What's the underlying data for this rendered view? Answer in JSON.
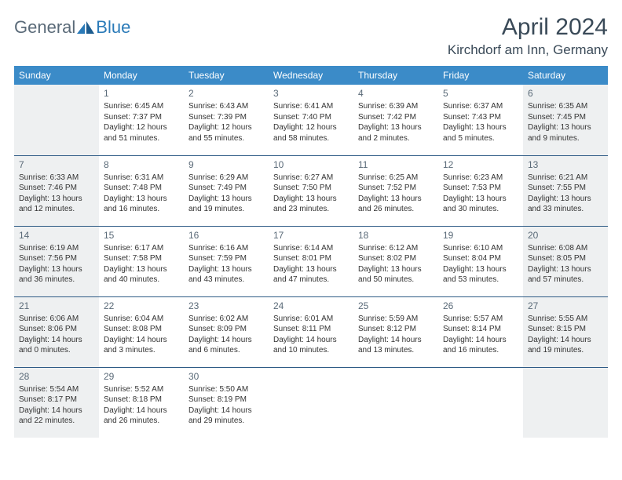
{
  "brand": {
    "part1": "General",
    "part2": "Blue"
  },
  "title": "April 2024",
  "location": "Kirchdorf am Inn, Germany",
  "colors": {
    "header_bg": "#3b8bc8",
    "header_text": "#ffffff",
    "weekend_bg": "#eef0f1",
    "rule": "#2d5a85",
    "brand_gray": "#5a6a78",
    "brand_blue": "#2a7ab8"
  },
  "weekdays": [
    "Sunday",
    "Monday",
    "Tuesday",
    "Wednesday",
    "Thursday",
    "Friday",
    "Saturday"
  ],
  "weeks": [
    [
      {
        "day": "",
        "sunrise": "",
        "sunset": "",
        "daylight": ""
      },
      {
        "day": "1",
        "sunrise": "Sunrise: 6:45 AM",
        "sunset": "Sunset: 7:37 PM",
        "daylight": "Daylight: 12 hours and 51 minutes."
      },
      {
        "day": "2",
        "sunrise": "Sunrise: 6:43 AM",
        "sunset": "Sunset: 7:39 PM",
        "daylight": "Daylight: 12 hours and 55 minutes."
      },
      {
        "day": "3",
        "sunrise": "Sunrise: 6:41 AM",
        "sunset": "Sunset: 7:40 PM",
        "daylight": "Daylight: 12 hours and 58 minutes."
      },
      {
        "day": "4",
        "sunrise": "Sunrise: 6:39 AM",
        "sunset": "Sunset: 7:42 PM",
        "daylight": "Daylight: 13 hours and 2 minutes."
      },
      {
        "day": "5",
        "sunrise": "Sunrise: 6:37 AM",
        "sunset": "Sunset: 7:43 PM",
        "daylight": "Daylight: 13 hours and 5 minutes."
      },
      {
        "day": "6",
        "sunrise": "Sunrise: 6:35 AM",
        "sunset": "Sunset: 7:45 PM",
        "daylight": "Daylight: 13 hours and 9 minutes."
      }
    ],
    [
      {
        "day": "7",
        "sunrise": "Sunrise: 6:33 AM",
        "sunset": "Sunset: 7:46 PM",
        "daylight": "Daylight: 13 hours and 12 minutes."
      },
      {
        "day": "8",
        "sunrise": "Sunrise: 6:31 AM",
        "sunset": "Sunset: 7:48 PM",
        "daylight": "Daylight: 13 hours and 16 minutes."
      },
      {
        "day": "9",
        "sunrise": "Sunrise: 6:29 AM",
        "sunset": "Sunset: 7:49 PM",
        "daylight": "Daylight: 13 hours and 19 minutes."
      },
      {
        "day": "10",
        "sunrise": "Sunrise: 6:27 AM",
        "sunset": "Sunset: 7:50 PM",
        "daylight": "Daylight: 13 hours and 23 minutes."
      },
      {
        "day": "11",
        "sunrise": "Sunrise: 6:25 AM",
        "sunset": "Sunset: 7:52 PM",
        "daylight": "Daylight: 13 hours and 26 minutes."
      },
      {
        "day": "12",
        "sunrise": "Sunrise: 6:23 AM",
        "sunset": "Sunset: 7:53 PM",
        "daylight": "Daylight: 13 hours and 30 minutes."
      },
      {
        "day": "13",
        "sunrise": "Sunrise: 6:21 AM",
        "sunset": "Sunset: 7:55 PM",
        "daylight": "Daylight: 13 hours and 33 minutes."
      }
    ],
    [
      {
        "day": "14",
        "sunrise": "Sunrise: 6:19 AM",
        "sunset": "Sunset: 7:56 PM",
        "daylight": "Daylight: 13 hours and 36 minutes."
      },
      {
        "day": "15",
        "sunrise": "Sunrise: 6:17 AM",
        "sunset": "Sunset: 7:58 PM",
        "daylight": "Daylight: 13 hours and 40 minutes."
      },
      {
        "day": "16",
        "sunrise": "Sunrise: 6:16 AM",
        "sunset": "Sunset: 7:59 PM",
        "daylight": "Daylight: 13 hours and 43 minutes."
      },
      {
        "day": "17",
        "sunrise": "Sunrise: 6:14 AM",
        "sunset": "Sunset: 8:01 PM",
        "daylight": "Daylight: 13 hours and 47 minutes."
      },
      {
        "day": "18",
        "sunrise": "Sunrise: 6:12 AM",
        "sunset": "Sunset: 8:02 PM",
        "daylight": "Daylight: 13 hours and 50 minutes."
      },
      {
        "day": "19",
        "sunrise": "Sunrise: 6:10 AM",
        "sunset": "Sunset: 8:04 PM",
        "daylight": "Daylight: 13 hours and 53 minutes."
      },
      {
        "day": "20",
        "sunrise": "Sunrise: 6:08 AM",
        "sunset": "Sunset: 8:05 PM",
        "daylight": "Daylight: 13 hours and 57 minutes."
      }
    ],
    [
      {
        "day": "21",
        "sunrise": "Sunrise: 6:06 AM",
        "sunset": "Sunset: 8:06 PM",
        "daylight": "Daylight: 14 hours and 0 minutes."
      },
      {
        "day": "22",
        "sunrise": "Sunrise: 6:04 AM",
        "sunset": "Sunset: 8:08 PM",
        "daylight": "Daylight: 14 hours and 3 minutes."
      },
      {
        "day": "23",
        "sunrise": "Sunrise: 6:02 AM",
        "sunset": "Sunset: 8:09 PM",
        "daylight": "Daylight: 14 hours and 6 minutes."
      },
      {
        "day": "24",
        "sunrise": "Sunrise: 6:01 AM",
        "sunset": "Sunset: 8:11 PM",
        "daylight": "Daylight: 14 hours and 10 minutes."
      },
      {
        "day": "25",
        "sunrise": "Sunrise: 5:59 AM",
        "sunset": "Sunset: 8:12 PM",
        "daylight": "Daylight: 14 hours and 13 minutes."
      },
      {
        "day": "26",
        "sunrise": "Sunrise: 5:57 AM",
        "sunset": "Sunset: 8:14 PM",
        "daylight": "Daylight: 14 hours and 16 minutes."
      },
      {
        "day": "27",
        "sunrise": "Sunrise: 5:55 AM",
        "sunset": "Sunset: 8:15 PM",
        "daylight": "Daylight: 14 hours and 19 minutes."
      }
    ],
    [
      {
        "day": "28",
        "sunrise": "Sunrise: 5:54 AM",
        "sunset": "Sunset: 8:17 PM",
        "daylight": "Daylight: 14 hours and 22 minutes."
      },
      {
        "day": "29",
        "sunrise": "Sunrise: 5:52 AM",
        "sunset": "Sunset: 8:18 PM",
        "daylight": "Daylight: 14 hours and 26 minutes."
      },
      {
        "day": "30",
        "sunrise": "Sunrise: 5:50 AM",
        "sunset": "Sunset: 8:19 PM",
        "daylight": "Daylight: 14 hours and 29 minutes."
      },
      {
        "day": "",
        "sunrise": "",
        "sunset": "",
        "daylight": ""
      },
      {
        "day": "",
        "sunrise": "",
        "sunset": "",
        "daylight": ""
      },
      {
        "day": "",
        "sunrise": "",
        "sunset": "",
        "daylight": ""
      },
      {
        "day": "",
        "sunrise": "",
        "sunset": "",
        "daylight": ""
      }
    ]
  ]
}
